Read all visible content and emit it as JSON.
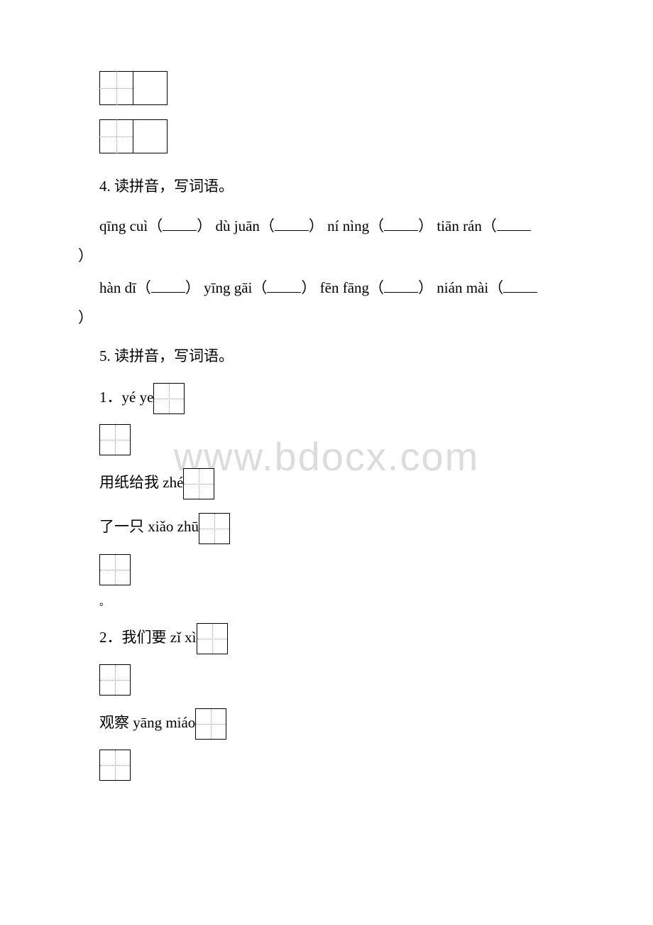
{
  "watermark": "www.bdocx.com",
  "q4": {
    "heading": "4. 读拼音，写词语。",
    "line1": {
      "p1": "qīng cuì（",
      "p2": "）  dù juān（",
      "p3": "）  ní nìng（",
      "p4": "）  tiān rán（",
      "close": "）"
    },
    "line2": {
      "p1": "hàn dī（",
      "p2": "）  yīng gāi（",
      "p3": "）  fēn fāng（",
      "p4": "） nián mài（",
      "close": "）"
    }
  },
  "q5": {
    "heading": "5. 读拼音，写词语。",
    "item1": {
      "prefix": "1．yé ye",
      "mid1": "用纸给我 zhé",
      "mid2": "了一只 xiǎo zhū",
      "period": "。"
    },
    "item2": {
      "prefix": "2．我们要 zǐ xì",
      "mid1": "观察 yāng miáo"
    }
  }
}
